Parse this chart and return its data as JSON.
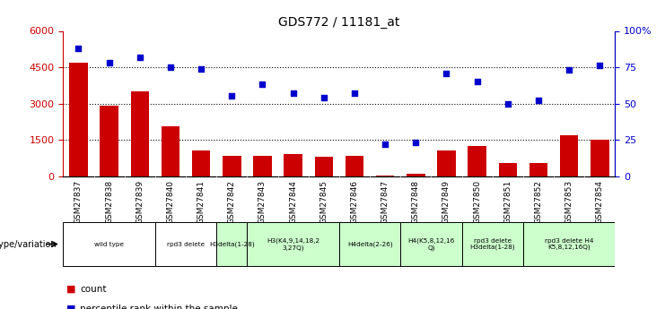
{
  "title": "GDS772 / 11181_at",
  "samples": [
    "GSM27837",
    "GSM27838",
    "GSM27839",
    "GSM27840",
    "GSM27841",
    "GSM27842",
    "GSM27843",
    "GSM27844",
    "GSM27845",
    "GSM27846",
    "GSM27847",
    "GSM27848",
    "GSM27849",
    "GSM27850",
    "GSM27851",
    "GSM27852",
    "GSM27853",
    "GSM27854"
  ],
  "counts": [
    4700,
    2900,
    3500,
    2050,
    1050,
    850,
    850,
    900,
    800,
    850,
    30,
    100,
    1050,
    1250,
    550,
    550,
    1700,
    1500
  ],
  "percentiles": [
    88,
    78,
    82,
    75,
    74,
    55,
    63,
    57,
    54,
    57,
    22,
    23,
    71,
    65,
    50,
    52,
    73,
    76
  ],
  "bar_color": "#cc0000",
  "dot_color": "#0000cc",
  "ylim_left": [
    0,
    6000
  ],
  "ylim_right": [
    0,
    100
  ],
  "yticks_left": [
    0,
    1500,
    3000,
    4500,
    6000
  ],
  "yticks_right": [
    0,
    25,
    50,
    75,
    100
  ],
  "yticklabels_right": [
    "0",
    "25",
    "50",
    "75",
    "100%"
  ],
  "grid_values": [
    1500,
    3000,
    4500
  ],
  "genotype_groups": [
    {
      "label": "wild type",
      "start": 0,
      "end": 2,
      "color": "#ffffff"
    },
    {
      "label": "rpd3 delete",
      "start": 3,
      "end": 4,
      "color": "#ffffff"
    },
    {
      "label": "H3delta(1-28)",
      "start": 5,
      "end": 5,
      "color": "#ccffcc"
    },
    {
      "label": "H3(K4,9,14,18,2\n3,27Q)",
      "start": 6,
      "end": 8,
      "color": "#ccffcc"
    },
    {
      "label": "H4delta(2-26)",
      "start": 9,
      "end": 10,
      "color": "#ccffcc"
    },
    {
      "label": "H4(K5,8,12,16\nQ)",
      "start": 11,
      "end": 12,
      "color": "#ccffcc"
    },
    {
      "label": "rpd3 delete\nH3delta(1-28)",
      "start": 13,
      "end": 14,
      "color": "#ccffcc"
    },
    {
      "label": "rpd3 delete H4\nK5,8,12,16Q)",
      "start": 15,
      "end": 17,
      "color": "#ccffcc"
    }
  ],
  "legend_count_color": "#cc0000",
  "legend_dot_color": "#0000cc",
  "genotype_label": "genotype/variation",
  "left_ylabel_color": "#cc0000",
  "right_ylabel_color": "#0000cc",
  "xtick_bg": "#d8d8d8",
  "plot_bg": "#ffffff"
}
